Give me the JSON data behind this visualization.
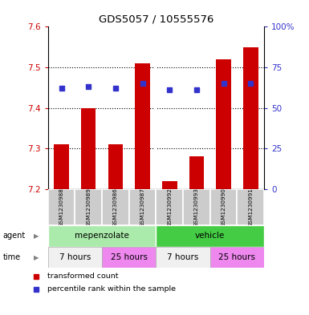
{
  "title": "GDS5057 / 10555576",
  "samples": [
    "GSM1230988",
    "GSM1230989",
    "GSM1230986",
    "GSM1230987",
    "GSM1230992",
    "GSM1230993",
    "GSM1230990",
    "GSM1230991"
  ],
  "bar_values": [
    7.31,
    7.4,
    7.31,
    7.51,
    7.22,
    7.28,
    7.52,
    7.55
  ],
  "bar_base": 7.2,
  "percentile_values": [
    62,
    63,
    62,
    65,
    61,
    61,
    65,
    65
  ],
  "ylim": [
    7.2,
    7.6
  ],
  "yticks": [
    7.2,
    7.3,
    7.4,
    7.5,
    7.6
  ],
  "right_yticks": [
    0,
    25,
    50,
    75,
    100
  ],
  "bar_color": "#cc0000",
  "dot_color": "#3333cc",
  "agent_groups": [
    {
      "label": "mepenzolate",
      "start": 0,
      "end": 4,
      "color": "#aaeaaa"
    },
    {
      "label": "vehicle",
      "start": 4,
      "end": 8,
      "color": "#44cc44"
    }
  ],
  "time_groups": [
    {
      "label": "7 hours",
      "start": 0,
      "end": 2,
      "color": "#f0f0f0"
    },
    {
      "label": "25 hours",
      "start": 2,
      "end": 4,
      "color": "#ee88ee"
    },
    {
      "label": "7 hours",
      "start": 4,
      "end": 6,
      "color": "#f0f0f0"
    },
    {
      "label": "25 hours",
      "start": 6,
      "end": 8,
      "color": "#ee88ee"
    }
  ],
  "sample_bg": "#cccccc",
  "tick_color_left": "#cc0000",
  "tick_color_right": "#3333cc",
  "bar_width": 0.55,
  "legend_items": [
    {
      "label": "transformed count",
      "color": "#cc0000"
    },
    {
      "label": "percentile rank within the sample",
      "color": "#3333cc"
    }
  ]
}
